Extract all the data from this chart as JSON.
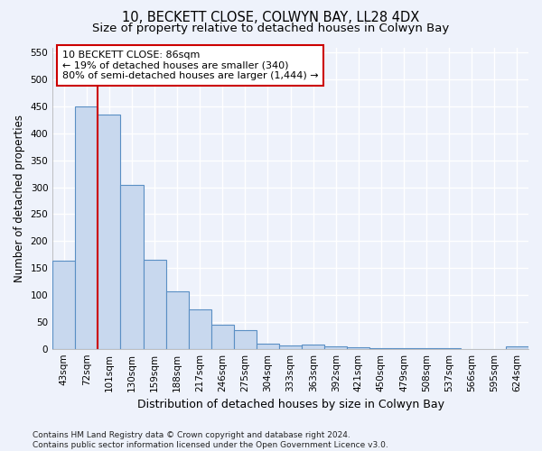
{
  "title": "10, BECKETT CLOSE, COLWYN BAY, LL28 4DX",
  "subtitle": "Size of property relative to detached houses in Colwyn Bay",
  "xlabel": "Distribution of detached houses by size in Colwyn Bay",
  "ylabel": "Number of detached properties",
  "categories": [
    "43sqm",
    "72sqm",
    "101sqm",
    "130sqm",
    "159sqm",
    "188sqm",
    "217sqm",
    "246sqm",
    "275sqm",
    "304sqm",
    "333sqm",
    "363sqm",
    "392sqm",
    "421sqm",
    "450sqm",
    "479sqm",
    "508sqm",
    "537sqm",
    "566sqm",
    "595sqm",
    "624sqm"
  ],
  "values": [
    163,
    450,
    435,
    305,
    165,
    107,
    73,
    44,
    34,
    9,
    7,
    8,
    5,
    2,
    1,
    1,
    1,
    1,
    0,
    0,
    4
  ],
  "bar_color": "#c8d8ee",
  "bar_edge_color": "#5a8fc4",
  "vline_x_idx": 1,
  "vline_x_offset": 0.5,
  "vline_color": "#cc0000",
  "annotation_text": "10 BECKETT CLOSE: 86sqm\n← 19% of detached houses are smaller (340)\n80% of semi-detached houses are larger (1,444) →",
  "annotation_box_facecolor": "#ffffff",
  "annotation_box_edgecolor": "#cc0000",
  "ylim": [
    0,
    560
  ],
  "yticks": [
    0,
    50,
    100,
    150,
    200,
    250,
    300,
    350,
    400,
    450,
    500,
    550
  ],
  "footer": "Contains HM Land Registry data © Crown copyright and database right 2024.\nContains public sector information licensed under the Open Government Licence v3.0.",
  "title_fontsize": 10.5,
  "subtitle_fontsize": 9.5,
  "ylabel_fontsize": 8.5,
  "xlabel_fontsize": 9,
  "tick_fontsize": 7.5,
  "annotation_fontsize": 8,
  "footer_fontsize": 6.5,
  "background_color": "#eef2fb",
  "grid_color": "#ffffff",
  "spine_color": "#aaaaaa"
}
